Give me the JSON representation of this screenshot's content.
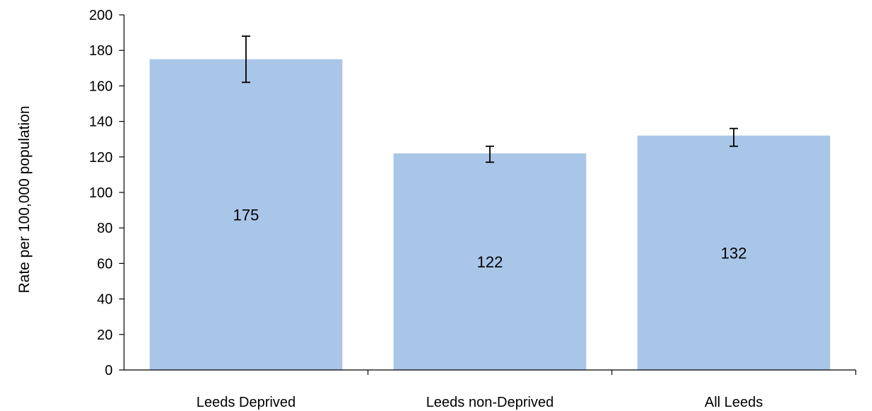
{
  "chart_data": {
    "type": "bar",
    "title": "",
    "xlabel": "",
    "ylabel": "Rate per 100,000  population",
    "ylim": [
      0,
      200
    ],
    "y_ticks": [
      0,
      20,
      40,
      60,
      80,
      100,
      120,
      140,
      160,
      180,
      200
    ],
    "grid": false,
    "legend": "none",
    "bar_color": "#a9c6e8",
    "categories": [
      "Leeds Deprived",
      "Leeds non-Deprived",
      "All Leeds"
    ],
    "values": [
      175,
      122,
      132
    ],
    "data_labels": [
      "175",
      "122",
      "132"
    ],
    "error_bars": [
      {
        "low": 162,
        "high": 188
      },
      {
        "low": 117,
        "high": 126
      },
      {
        "low": 126,
        "high": 136
      }
    ]
  }
}
